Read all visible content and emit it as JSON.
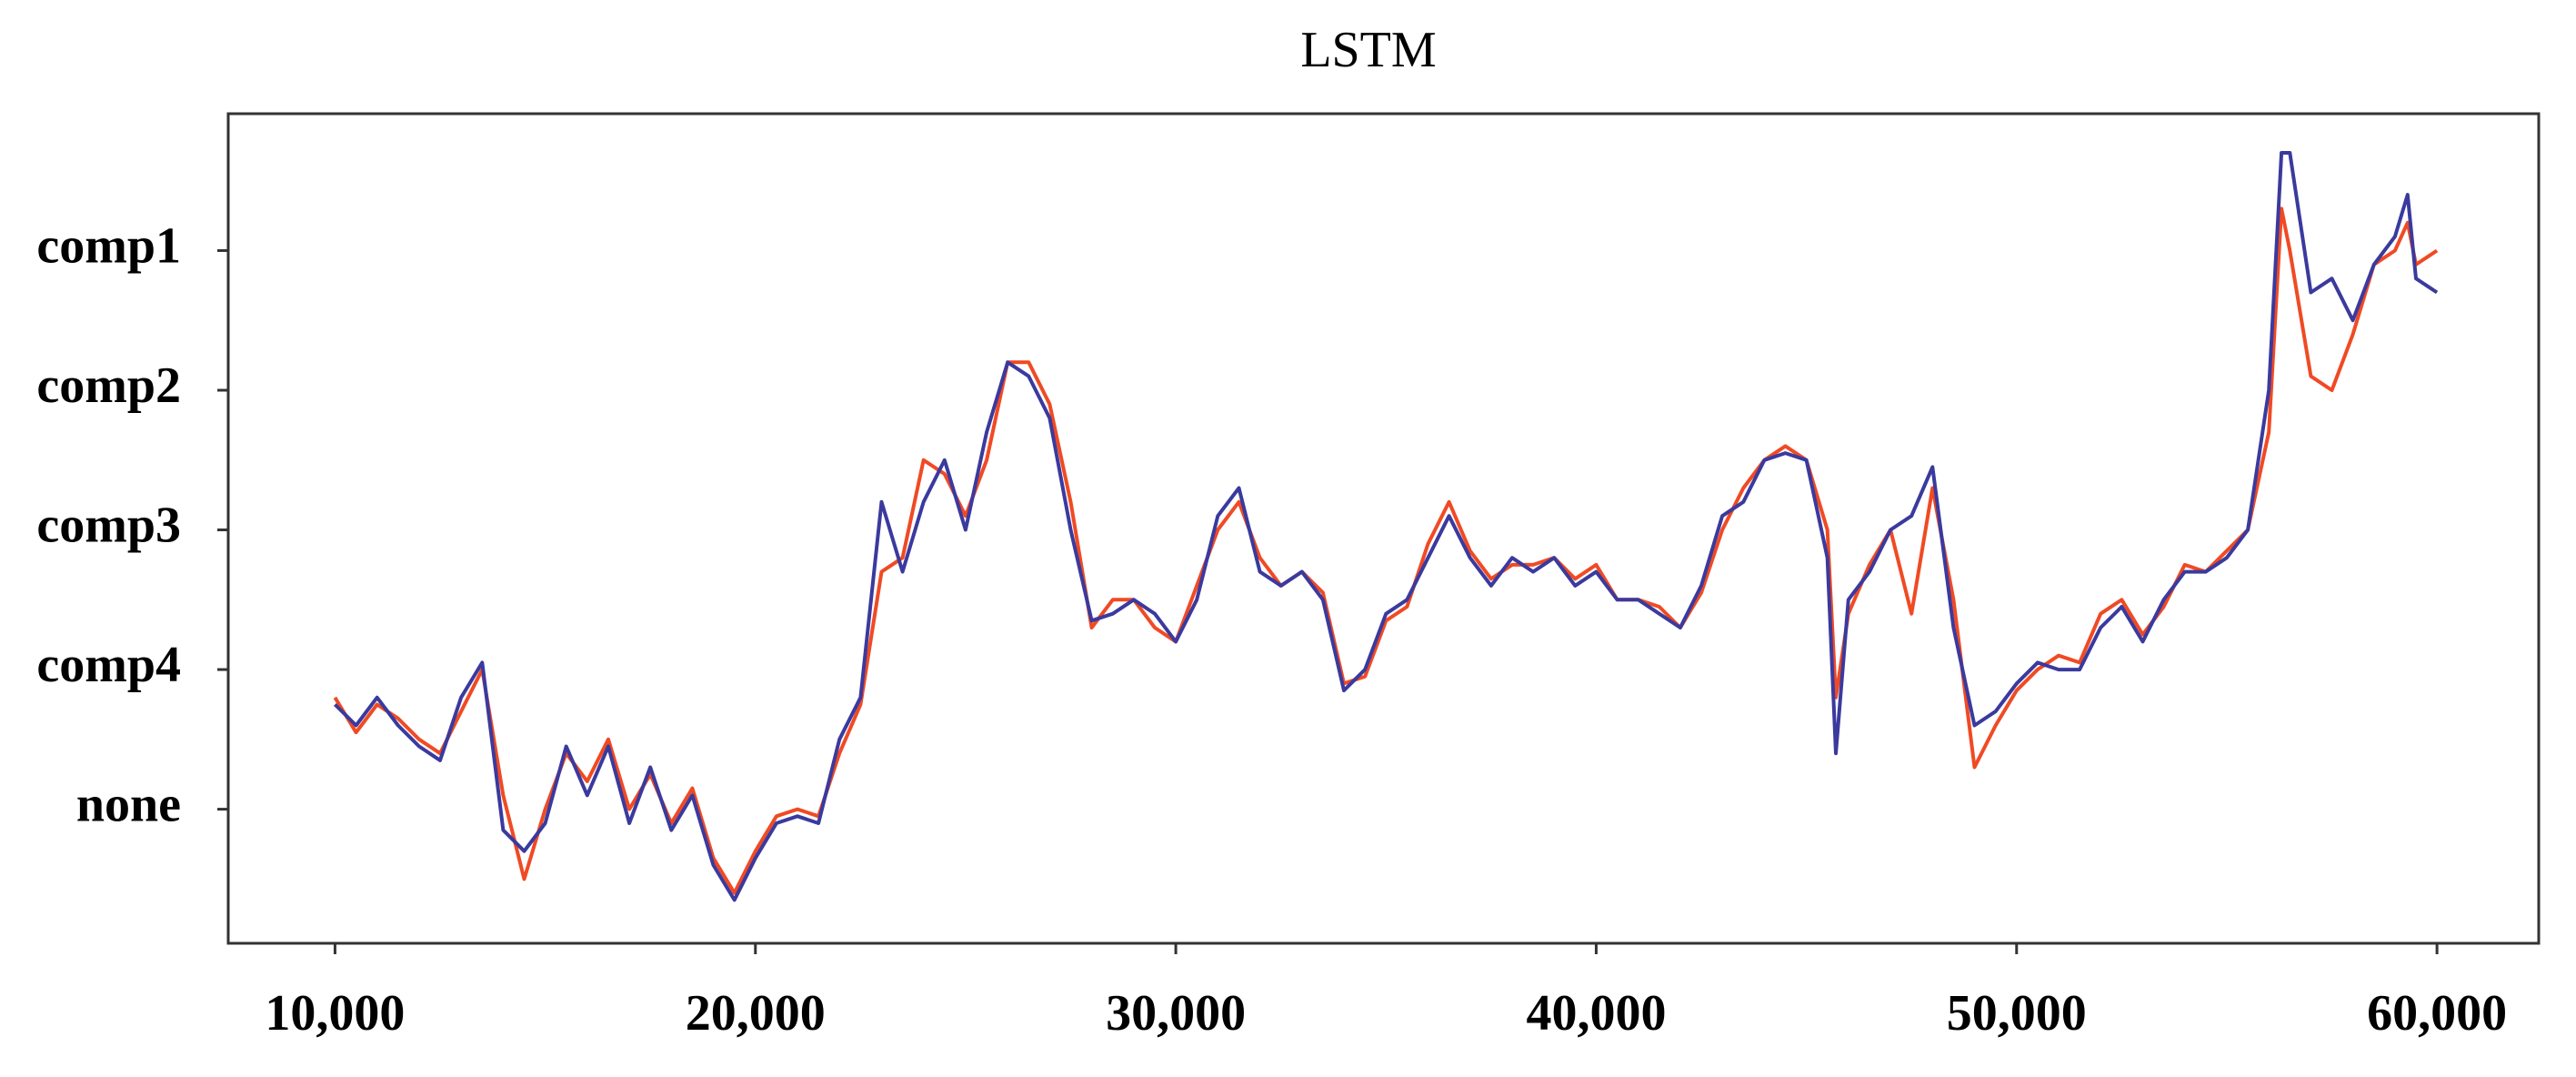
{
  "chart_data": {
    "type": "line",
    "title": "LSTM",
    "x": [
      10000,
      10500,
      11000,
      11500,
      12000,
      12500,
      13000,
      13500,
      14000,
      14500,
      15000,
      15500,
      16000,
      16500,
      17000,
      17500,
      18000,
      18500,
      19000,
      19500,
      20000,
      20500,
      21000,
      21500,
      22000,
      22500,
      23000,
      23500,
      24000,
      24500,
      25000,
      25500,
      26000,
      26500,
      27000,
      27500,
      28000,
      28500,
      29000,
      29500,
      30000,
      30500,
      31000,
      31500,
      32000,
      32500,
      33000,
      33500,
      34000,
      34500,
      35000,
      35500,
      36000,
      36500,
      37000,
      37500,
      38000,
      38500,
      39000,
      39500,
      40000,
      40500,
      41000,
      41500,
      42000,
      42500,
      43000,
      43500,
      44000,
      44500,
      45000,
      45500,
      45700,
      46000,
      46500,
      47000,
      47500,
      48000,
      48500,
      49000,
      49500,
      50000,
      50500,
      51000,
      51500,
      52000,
      52500,
      53000,
      53500,
      54000,
      54500,
      55000,
      55500,
      56000,
      56300,
      56500,
      57000,
      57500,
      58000,
      58500,
      59000,
      59300,
      59500,
      60000
    ],
    "series": [
      {
        "color": "#f04a24",
        "values": [
          0.8,
          0.55,
          0.75,
          0.65,
          0.5,
          0.4,
          0.7,
          1.0,
          0.1,
          -0.5,
          0.0,
          0.4,
          0.2,
          0.5,
          0.0,
          0.25,
          -0.1,
          0.15,
          -0.35,
          -0.6,
          -0.3,
          -0.05,
          0.0,
          -0.05,
          0.4,
          0.75,
          1.7,
          1.8,
          2.5,
          2.4,
          2.1,
          2.5,
          3.2,
          3.2,
          2.9,
          2.2,
          1.3,
          1.5,
          1.5,
          1.3,
          1.2,
          1.6,
          2.0,
          2.2,
          1.8,
          1.6,
          1.7,
          1.55,
          0.9,
          0.95,
          1.35,
          1.45,
          1.9,
          2.2,
          1.85,
          1.65,
          1.75,
          1.75,
          1.8,
          1.65,
          1.75,
          1.5,
          1.5,
          1.45,
          1.3,
          1.55,
          2.0,
          2.3,
          2.5,
          2.6,
          2.5,
          2.0,
          0.8,
          1.4,
          1.75,
          2.0,
          1.4,
          2.3,
          1.5,
          0.3,
          0.6,
          0.85,
          1.0,
          1.1,
          1.05,
          1.4,
          1.5,
          1.25,
          1.45,
          1.75,
          1.7,
          1.85,
          2.0,
          2.7,
          4.3,
          4.0,
          3.1,
          3.0,
          3.4,
          3.9,
          4.0,
          4.2,
          3.9,
          4.0
        ]
      },
      {
        "color": "#3a3a9e",
        "values": [
          0.75,
          0.6,
          0.8,
          0.6,
          0.45,
          0.35,
          0.8,
          1.05,
          -0.15,
          -0.3,
          -0.1,
          0.45,
          0.1,
          0.45,
          -0.1,
          0.3,
          -0.15,
          0.1,
          -0.4,
          -0.65,
          -0.35,
          -0.1,
          -0.05,
          -0.1,
          0.5,
          0.8,
          2.2,
          1.7,
          2.2,
          2.5,
          2.0,
          2.7,
          3.2,
          3.1,
          2.8,
          2.0,
          1.35,
          1.4,
          1.5,
          1.4,
          1.2,
          1.5,
          2.1,
          2.3,
          1.7,
          1.6,
          1.7,
          1.5,
          0.85,
          1.0,
          1.4,
          1.5,
          1.8,
          2.1,
          1.8,
          1.6,
          1.8,
          1.7,
          1.8,
          1.6,
          1.7,
          1.5,
          1.5,
          1.4,
          1.3,
          1.6,
          2.1,
          2.2,
          2.5,
          2.55,
          2.5,
          1.8,
          0.4,
          1.5,
          1.7,
          2.0,
          2.1,
          2.45,
          1.3,
          0.6,
          0.7,
          0.9,
          1.05,
          1.0,
          1.0,
          1.3,
          1.45,
          1.2,
          1.5,
          1.7,
          1.7,
          1.8,
          2.0,
          3.0,
          4.7,
          4.7,
          3.7,
          3.8,
          3.5,
          3.9,
          4.1,
          4.4,
          3.8,
          3.7
        ]
      }
    ],
    "xlim": [
      7460,
      62420
    ],
    "xticks": [
      {
        "value": 10000,
        "label": "10,000"
      },
      {
        "value": 20000,
        "label": "20,000"
      },
      {
        "value": 30000,
        "label": "30,000"
      },
      {
        "value": 40000,
        "label": "40,000"
      },
      {
        "value": 50000,
        "label": "50,000"
      },
      {
        "value": 60000,
        "label": "60,000"
      }
    ],
    "ylim": [
      -0.96,
      4.98
    ],
    "yticks": [
      {
        "value": 4,
        "label": "comp1"
      },
      {
        "value": 3,
        "label": "comp2"
      },
      {
        "value": 2,
        "label": "comp3"
      },
      {
        "value": 1,
        "label": "comp4"
      },
      {
        "value": 0,
        "label": "none"
      }
    ]
  }
}
